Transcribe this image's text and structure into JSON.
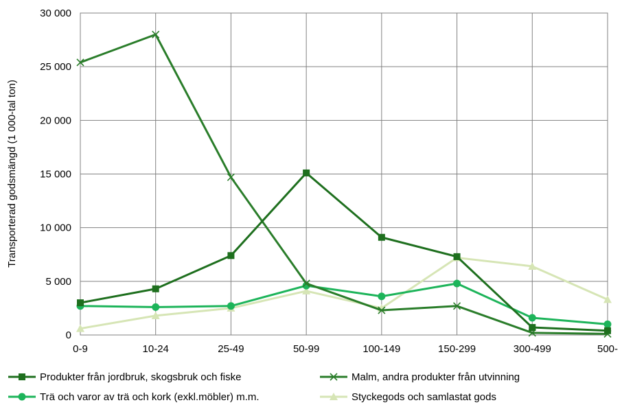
{
  "chart_data": {
    "type": "line",
    "title": "",
    "xlabel": "",
    "ylabel": "Transporterad godsmängd (1 000-tal ton)",
    "categories": [
      "0-9",
      "10-24",
      "25-49",
      "50-99",
      "100-149",
      "150-299",
      "300-499",
      "500-"
    ],
    "ylim": [
      0,
      30000
    ],
    "yticks": [
      0,
      5000,
      10000,
      15000,
      20000,
      25000,
      30000
    ],
    "ytick_labels": [
      "0",
      "5 000",
      "10 000",
      "15 000",
      "20 000",
      "25 000",
      "30 000"
    ],
    "grid": true,
    "legend_position": "bottom",
    "series": [
      {
        "name": "Produkter från jordbruk, skogsbruk och fiske",
        "color": "#1e6f1e",
        "marker": "square",
        "values": [
          3000,
          4300,
          7400,
          15100,
          9100,
          7300,
          700,
          400
        ]
      },
      {
        "name": "Malm, andra produkter från utvinning",
        "color": "#2a7d2a",
        "marker": "x",
        "values": [
          25400,
          28000,
          14700,
          4800,
          2300,
          2700,
          200,
          100
        ]
      },
      {
        "name": "Trä och varor av trä och kork (exkl.möbler) m.m.",
        "color": "#1db45a",
        "marker": "circle",
        "values": [
          2700,
          2600,
          2700,
          4600,
          3600,
          4800,
          1600,
          1000
        ]
      },
      {
        "name": "Styckegods och samlastat gods",
        "color": "#d6e5b5",
        "marker": "triangle",
        "values": [
          600,
          1800,
          2500,
          4100,
          2500,
          7200,
          6400,
          3300
        ]
      }
    ]
  }
}
